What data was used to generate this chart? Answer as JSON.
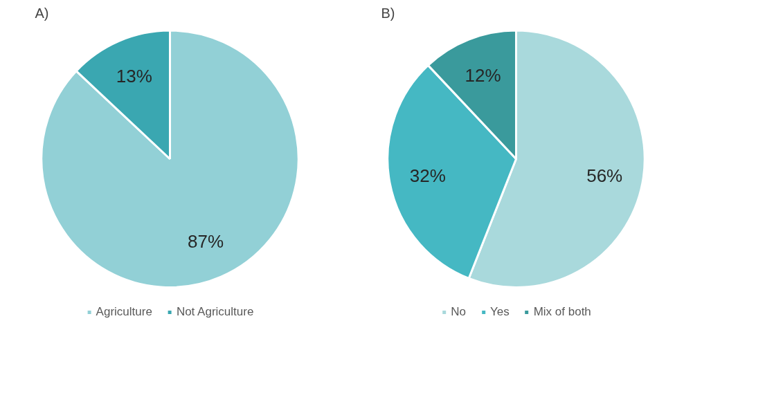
{
  "chart_data": [
    {
      "type": "pie",
      "title": "A)",
      "categories": [
        "Agriculture",
        "Not Agriculture"
      ],
      "values": [
        87,
        13
      ],
      "colors": [
        "#92d0d6",
        "#3aa7b1"
      ],
      "value_labels": [
        "87%",
        "13%"
      ],
      "legend": "bottom"
    },
    {
      "type": "pie",
      "title": "B)",
      "categories": [
        "No",
        "Yes",
        "Mix of both"
      ],
      "values": [
        56,
        32,
        12
      ],
      "colors": [
        "#a9d9dc",
        "#45b8c3",
        "#3a9a9c"
      ],
      "value_labels": [
        "56%",
        "32%",
        "12%"
      ],
      "legend": "bottom"
    }
  ]
}
